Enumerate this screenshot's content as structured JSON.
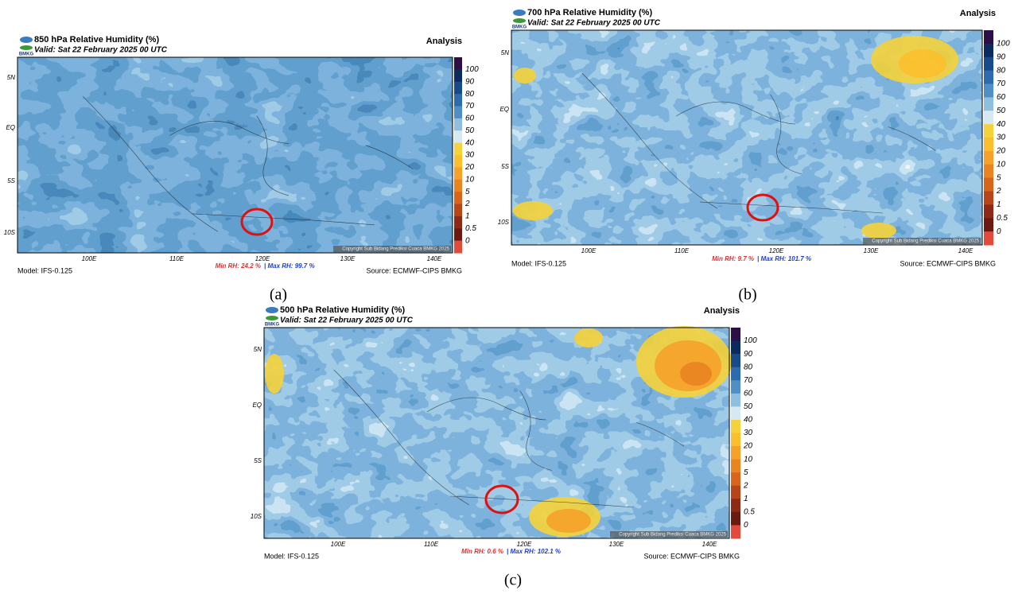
{
  "colorbar_labels": [
    "100",
    "90",
    "80",
    "70",
    "60",
    "50",
    "40",
    "30",
    "20",
    "10",
    "5",
    "2",
    "1",
    "0.5",
    "0"
  ],
  "colorbar_colors": [
    "#2b0f46",
    "#0b2a5e",
    "#174a8a",
    "#2c6bb0",
    "#4f8fc6",
    "#8fbedf",
    "#d6e8f2",
    "#f5d13a",
    "#fbbf2e",
    "#f5a12a",
    "#ea8421",
    "#d9651c",
    "#b8441a",
    "#8c2a15",
    "#6a1a10",
    "#e34a3a"
  ],
  "lat_labels": [
    "5N",
    "EQ",
    "5S",
    "10S"
  ],
  "lon_labels": [
    "100E",
    "110E",
    "120E",
    "130E",
    "140E"
  ],
  "logo_text": "BMKG",
  "panels": [
    {
      "title": "850 hPa Relative Humidity (%)",
      "valid": "Valid: Sat 22 February 2025 00 UTC",
      "analysis": "Analysis",
      "model": "Model: IFS-0.125",
      "min_rh": "Min RH:  24.2 %",
      "max_rh": "| Max RH:  99.7 %",
      "source": "Source: ECMWF-CIPS BMKG",
      "copyright": "Copyright Sub Bidang Prediksi Cuaca BMKG 2025",
      "caption": "(a)"
    },
    {
      "title": "700 hPa Relative Humidity (%)",
      "valid": "Valid: Sat 22 February 2025 00 UTC",
      "analysis": "Analysis",
      "model": "Model: IFS-0.125",
      "min_rh": "Min RH:   9.7 %",
      "max_rh": "| Max RH:  101.7 %",
      "source": "Source: ECMWF-CIPS BMKG",
      "copyright": "Copyright Sub Bidang Prediksi Cuaca BMKG 2025",
      "caption": "(b)"
    },
    {
      "title": "500 hPa Relative Humidity (%)",
      "valid": "Valid: Sat 22 February 2025 00 UTC",
      "analysis": "Analysis",
      "model": "Model: IFS-0.125",
      "min_rh": "Min RH:   0.6 %",
      "max_rh": "| Max RH:  102.1 %",
      "source": "Source: ECMWF-CIPS BMKG",
      "copyright": "Copyright Sub Bidang Prediksi Cuaca BMKG 2025",
      "caption": "(c)"
    }
  ]
}
